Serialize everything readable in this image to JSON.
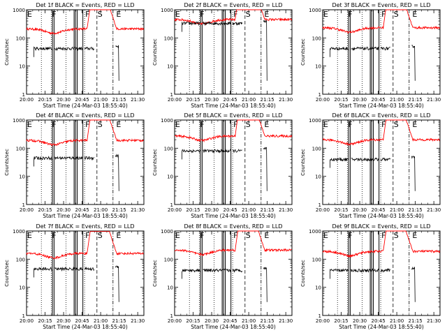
{
  "chart_data": {
    "type": "line",
    "panels": [
      {
        "title": "Det 1f BLACK = Events, RED = LLD",
        "red_base": 210,
        "black_base": 42
      },
      {
        "title": "Det 2f BLACK = Events, RED = LLD",
        "red_base": 450,
        "black_base": 330
      },
      {
        "title": "Det 3f BLACK = Events, RED = LLD",
        "red_base": 230,
        "black_base": 42
      },
      {
        "title": "Det 4f BLACK = Events, RED = LLD",
        "red_base": 190,
        "black_base": 45
      },
      {
        "title": "Det 5f BLACK = Events, RED = LLD",
        "red_base": 270,
        "black_base": 80
      },
      {
        "title": "Det 6f BLACK = Events, RED = LLD",
        "red_base": 200,
        "black_base": 40
      },
      {
        "title": "Det 7f BLACK = Events, RED = LLD",
        "red_base": 160,
        "black_base": 45
      },
      {
        "title": "Det 8f BLACK = Events, RED = LLD",
        "red_base": 210,
        "black_base": 40
      },
      {
        "title": "Det 9f BLACK = Events, RED = LLD",
        "red_base": 190,
        "black_base": 40
      }
    ],
    "xlabel": "Start Time (24-Mar-03 18:55:40)",
    "ylabel": "Counts/sec",
    "x_ticks": [
      "20:00",
      "20:15",
      "20:30",
      "20:45",
      "21:00",
      "21:15",
      "21:30"
    ],
    "x_range_minutes": [
      1200,
      1295
    ],
    "y_ticks": [
      "1",
      "10",
      "100",
      "1000"
    ],
    "ylim": [
      1,
      1000
    ],
    "y_scale": "log",
    "markers": [
      {
        "label": "E",
        "minute": 1200
      },
      {
        "label": "F",
        "minute": 1220
      },
      {
        "label": "F",
        "minute": 1247
      },
      {
        "label": "S",
        "minute": 1257
      },
      {
        "label": "E",
        "minute": 1272
      }
    ],
    "series": [
      {
        "name": "Events",
        "color": "#000000"
      },
      {
        "name": "LLD",
        "color": "#ff0000"
      }
    ]
  },
  "colors": {
    "background": "#ffffff",
    "axes": "#000000",
    "events": "#000000",
    "lld": "#ff0000"
  }
}
